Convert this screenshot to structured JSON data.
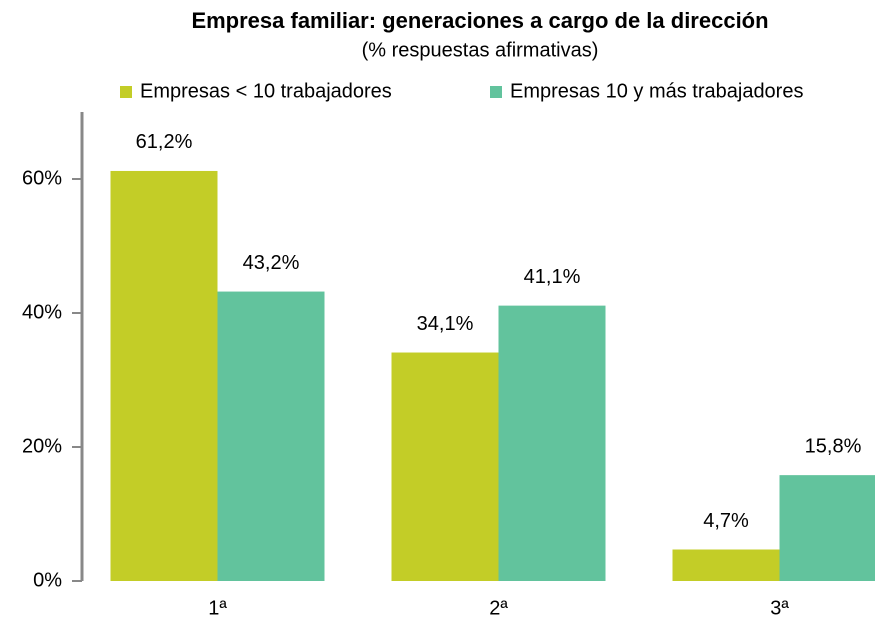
{
  "chart_data": {
    "type": "bar",
    "title": "Empresa familiar: generaciones a cargo de la dirección",
    "subtitle": "(% respuestas afirmativas)",
    "categories": [
      "1ª",
      "2ª",
      "3ª"
    ],
    "series": [
      {
        "name": "Empresas < 10 trabajadores",
        "color": "#c3cd27",
        "values": [
          61.2,
          34.1,
          4.7
        ],
        "value_labels": [
          "61,2%",
          "34,1%",
          "4,7%"
        ]
      },
      {
        "name": "Empresas 10 y más trabajadores",
        "color": "#62c39d",
        "values": [
          43.2,
          41.1,
          15.8
        ],
        "value_labels": [
          "43,2%",
          "41,1%",
          "15,8%"
        ]
      }
    ],
    "ylim": [
      0,
      70
    ],
    "yticks": [
      {
        "value": 0,
        "label": "0%"
      },
      {
        "value": 20,
        "label": "20%"
      },
      {
        "value": 40,
        "label": "40%"
      },
      {
        "value": 60,
        "label": "60%"
      }
    ],
    "legend": "top"
  }
}
